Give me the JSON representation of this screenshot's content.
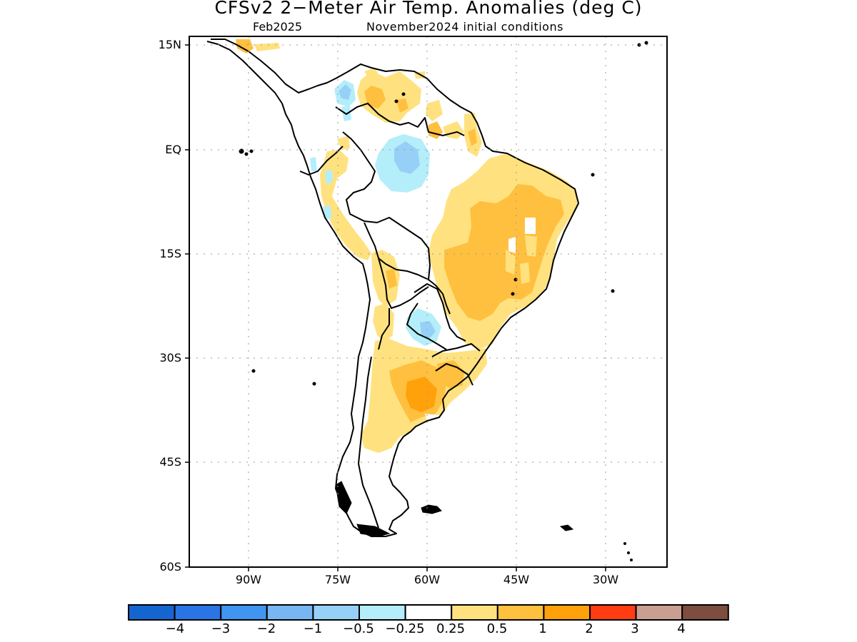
{
  "header": {
    "title": "CFSv2 2−Meter Air Temp. Anomalies (deg C)",
    "target_month": "Feb2025",
    "initial_conditions": "November2024 initial conditions"
  },
  "map": {
    "region": "South America",
    "lat_labels": [
      "15N",
      "EQ",
      "15S",
      "30S",
      "45S",
      "60S"
    ],
    "lon_labels": [
      "90W",
      "75W",
      "60W",
      "45W",
      "30W"
    ],
    "grid": "dotted"
  },
  "colorbar": {
    "labels": [
      "−4",
      "−3",
      "−2",
      "−1",
      "−0.5",
      "−0.25",
      "0.25",
      "0.5",
      "1",
      "2",
      "3",
      "4"
    ],
    "colors": [
      "#1565d1",
      "#2a74e6",
      "#3f95f0",
      "#78b6f3",
      "#97d0f7",
      "#b4eefa",
      "#ffffff",
      "#ffe27f",
      "#ffc03f",
      "#ffa10a",
      "#ff3c12",
      "#cb9e92",
      "#7d4d3f"
    ]
  }
}
